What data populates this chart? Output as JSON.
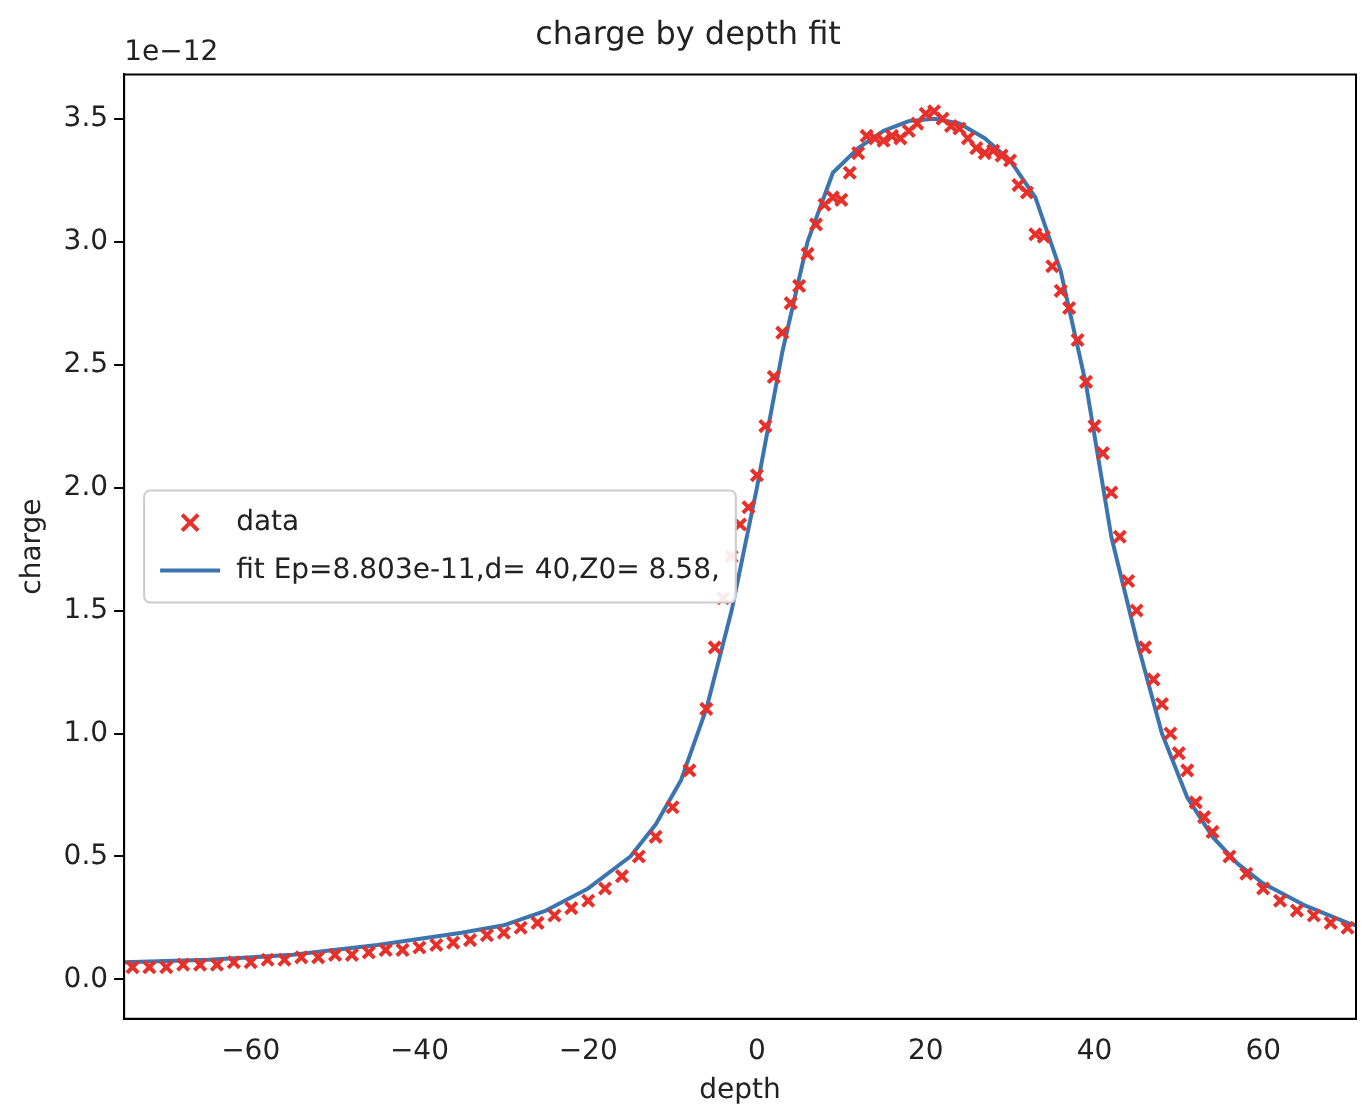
{
  "chart_data": {
    "type": "scatter",
    "title": "charge by depth fit",
    "xlabel": "depth",
    "ylabel": "charge",
    "annotations": [
      "1e−12"
    ],
    "xlim": [
      -75,
      71
    ],
    "ylim": [
      -0.16,
      3.68
    ],
    "xticks": [
      -60,
      -40,
      -20,
      0,
      20,
      40,
      60
    ],
    "yticks": [
      {
        "value": 0,
        "label": "0.0"
      },
      0.5,
      {
        "value": 1,
        "label": "1.0"
      },
      1.5,
      {
        "value": 2,
        "label": "2.0"
      },
      2.5,
      {
        "value": 3,
        "label": "3.0"
      },
      3.5
    ],
    "grid": false,
    "legend": "center left",
    "series": [
      {
        "name": "data",
        "type": "scatter",
        "marker": "cross",
        "color": "#e8302a",
        "x": [
          -74,
          -72,
          -70,
          -68,
          -66,
          -64,
          -62,
          -60,
          -58,
          -56,
          -54,
          -52,
          -50,
          -48,
          -46,
          -44,
          -42,
          -40,
          -38,
          -36,
          -34,
          -32,
          -30,
          -28,
          -26,
          -24,
          -22,
          -20,
          -18,
          -16,
          -14,
          -12,
          -10,
          -8,
          -6,
          -5,
          -4,
          -3,
          -2,
          -1,
          0,
          1,
          2,
          3,
          4,
          5,
          6,
          7,
          8,
          9,
          10,
          11,
          12,
          13,
          14,
          15,
          16,
          17,
          18,
          19,
          20,
          21,
          22,
          23,
          24,
          25,
          26,
          27,
          28,
          29,
          30,
          31,
          32,
          33,
          34,
          35,
          36,
          37,
          38,
          39,
          40,
          41,
          42,
          43,
          44,
          45,
          46,
          47,
          48,
          49,
          50,
          51,
          52,
          53,
          54,
          56,
          58,
          60,
          62,
          64,
          66,
          68,
          70
        ],
        "values": [
          0.05,
          0.05,
          0.05,
          0.06,
          0.06,
          0.06,
          0.07,
          0.07,
          0.08,
          0.08,
          0.09,
          0.09,
          0.1,
          0.1,
          0.11,
          0.12,
          0.12,
          0.13,
          0.14,
          0.15,
          0.16,
          0.18,
          0.19,
          0.21,
          0.23,
          0.26,
          0.29,
          0.32,
          0.37,
          0.42,
          0.5,
          0.58,
          0.7,
          0.85,
          1.1,
          1.35,
          1.55,
          1.72,
          1.85,
          1.92,
          2.05,
          2.25,
          2.45,
          2.63,
          2.75,
          2.82,
          2.95,
          3.07,
          3.15,
          3.18,
          3.17,
          3.28,
          3.36,
          3.43,
          3.42,
          3.41,
          3.43,
          3.42,
          3.45,
          3.48,
          3.52,
          3.53,
          3.5,
          3.47,
          3.46,
          3.42,
          3.38,
          3.36,
          3.37,
          3.35,
          3.33,
          3.23,
          3.2,
          3.03,
          3.02,
          2.9,
          2.8,
          2.73,
          2.6,
          2.43,
          2.25,
          2.14,
          1.98,
          1.8,
          1.62,
          1.5,
          1.35,
          1.22,
          1.12,
          1,
          0.92,
          0.85,
          0.72,
          0.66,
          0.6,
          0.5,
          0.43,
          0.37,
          0.32,
          0.28,
          0.26,
          0.23,
          0.21
        ]
      },
      {
        "name": "fit Ep=8.803e-11,d= 40,Z0= 8.58,",
        "type": "line",
        "marker": "none",
        "line_style": "solid",
        "color": "#3b75af",
        "x": [
          -75,
          -65,
          -55,
          -45,
          -35,
          -30,
          -25,
          -20,
          -15,
          -12,
          -9,
          -6,
          -3,
          0,
          3,
          6,
          9,
          12,
          15,
          18,
          21,
          24,
          27,
          30,
          33,
          36,
          39,
          42,
          45,
          48,
          51,
          54,
          57,
          60,
          65,
          70,
          71
        ],
        "values": [
          0.07,
          0.08,
          0.1,
          0.14,
          0.19,
          0.22,
          0.28,
          0.37,
          0.5,
          0.63,
          0.81,
          1.1,
          1.5,
          2,
          2.55,
          3.0,
          3.28,
          3.38,
          3.45,
          3.49,
          3.5,
          3.48,
          3.42,
          3.33,
          3.18,
          2.88,
          2.42,
          1.8,
          1.38,
          1,
          0.74,
          0.58,
          0.47,
          0.39,
          0.3,
          0.23,
          0.22
        ]
      }
    ]
  }
}
